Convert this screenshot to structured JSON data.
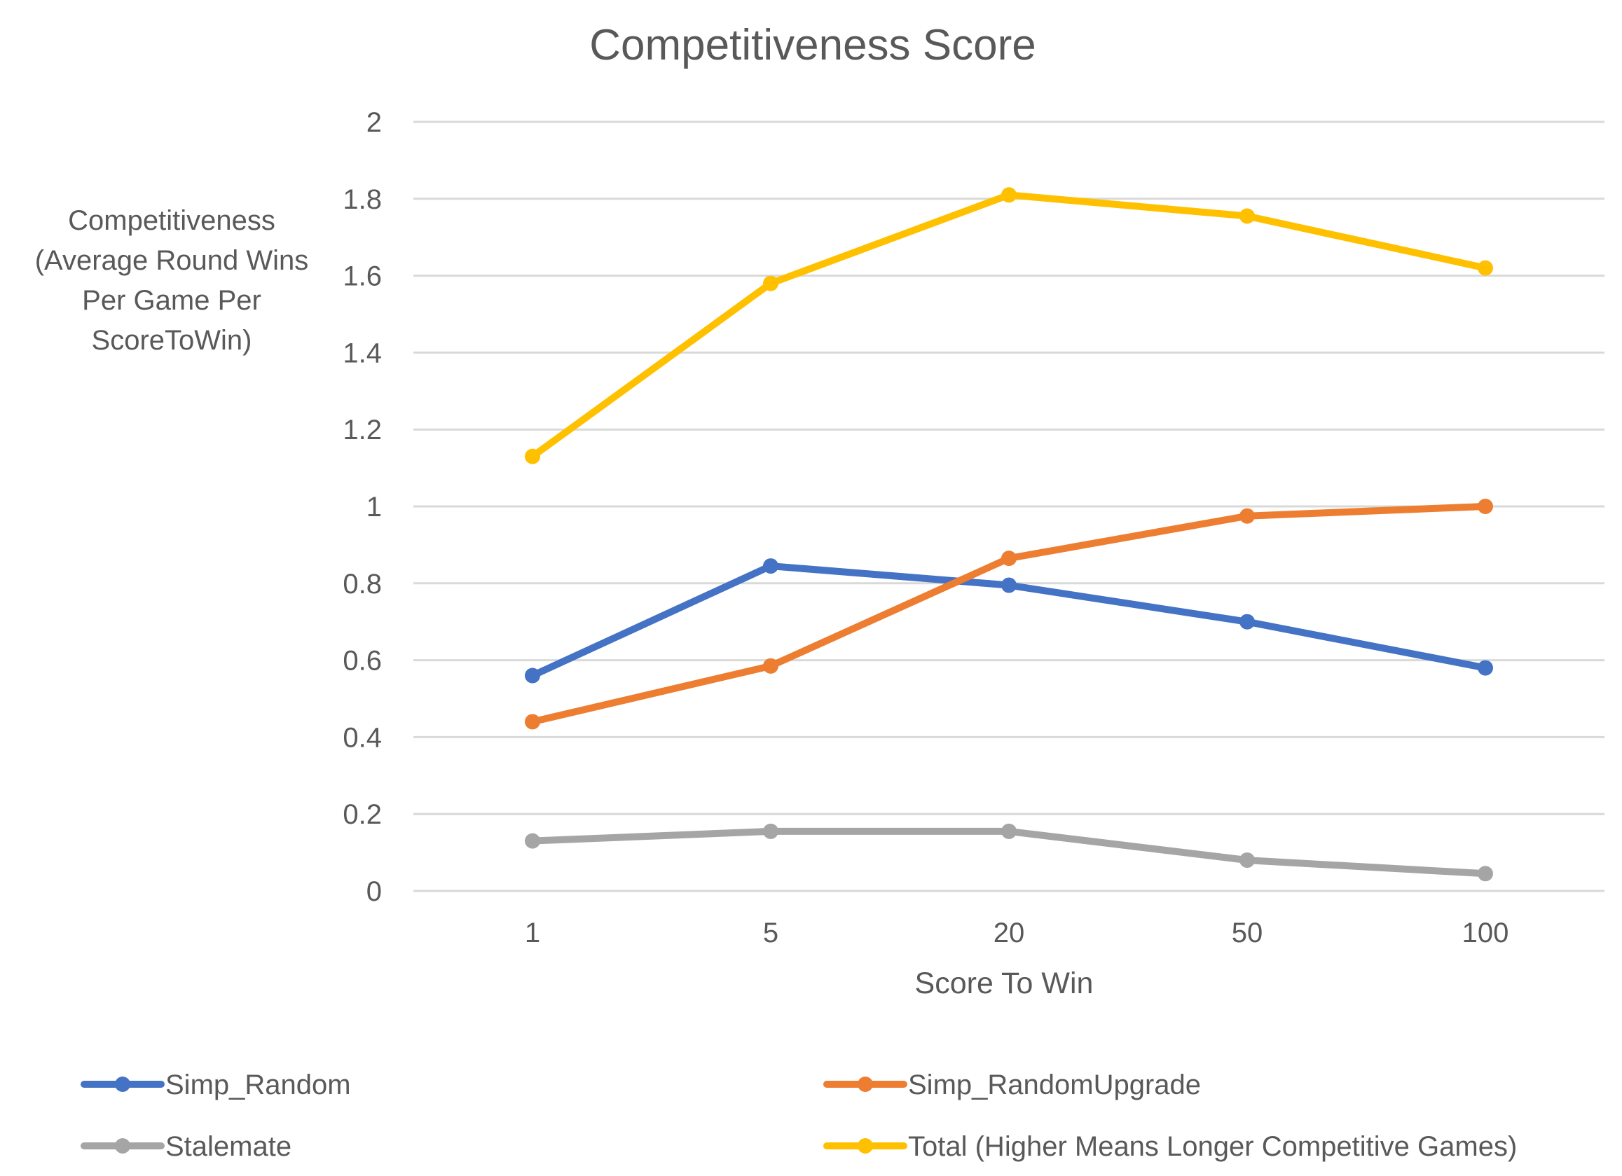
{
  "chart_data": {
    "type": "line",
    "title": "Competitiveness Score",
    "xlabel": "Score To Win",
    "ylabel_lines": [
      "Competitiveness",
      "(Average Round Wins",
      "Per Game Per",
      "ScoreToWin)"
    ],
    "categories": [
      "1",
      "5",
      "20",
      "50",
      "100"
    ],
    "ylim": [
      0,
      2
    ],
    "yticks": [
      "0",
      "0.2",
      "0.4",
      "0.6",
      "0.8",
      "1",
      "1.2",
      "1.4",
      "1.6",
      "1.8",
      "2"
    ],
    "grid": true,
    "legend_position": "bottom",
    "series": [
      {
        "name": "Simp_Random",
        "color": "#4472C4",
        "values": [
          0.56,
          0.845,
          0.795,
          0.7,
          0.58
        ]
      },
      {
        "name": "Simp_RandomUpgrade",
        "color": "#ED7D31",
        "values": [
          0.44,
          0.585,
          0.865,
          0.975,
          1.0
        ]
      },
      {
        "name": "Stalemate",
        "color": "#A5A5A5",
        "values": [
          0.13,
          0.155,
          0.155,
          0.08,
          0.045
        ]
      },
      {
        "name": "Total (Higher Means Longer Competitive Games)",
        "color": "#FFC000",
        "values": [
          1.13,
          1.58,
          1.81,
          1.755,
          1.62
        ]
      }
    ]
  }
}
